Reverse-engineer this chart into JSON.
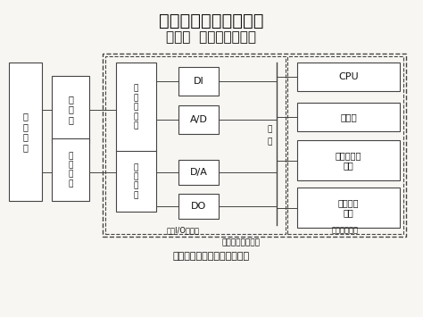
{
  "title1": "工业控制计算机及接口",
  "title2": "第一节  工业控制计算机",
  "caption": "工业微机系统硬件组成示意图",
  "label_io_sub": "过程I/O子系统",
  "label_system": "工业控制微机系统",
  "label_micro_basic": "微机基本系统",
  "label_bus_top": "总",
  "label_bus_bot": "线",
  "bg_color": "#f8f6f2",
  "edge_color": "#444444",
  "text_color": "#111111"
}
